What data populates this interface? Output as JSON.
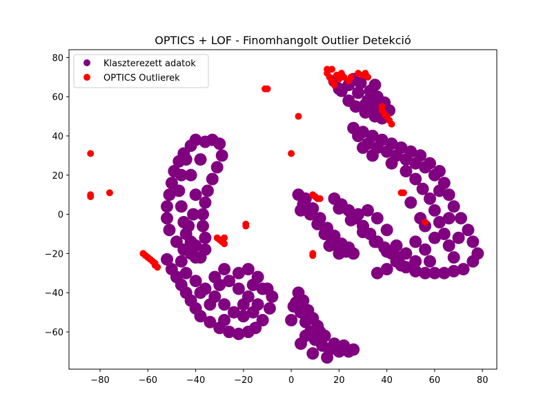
{
  "chart_data": {
    "type": "scatter",
    "title": "OPTICS + LOF - Finomhangolt Outlier Detekció",
    "xlabel": "",
    "ylabel": "",
    "xlim": [
      -93,
      86
    ],
    "ylim": [
      -79,
      84
    ],
    "xticks": [
      -80,
      -60,
      -40,
      -20,
      0,
      20,
      40,
      60,
      80
    ],
    "yticks": [
      -60,
      -40,
      -20,
      0,
      20,
      40,
      60,
      80
    ],
    "xtick_labels": [
      "−80",
      "−60",
      "−40",
      "−20",
      "0",
      "20",
      "40",
      "60",
      "80"
    ],
    "ytick_labels": [
      "−60",
      "−40",
      "−20",
      "0",
      "20",
      "40",
      "60",
      "80"
    ],
    "grid": false,
    "legend_position": "top-left",
    "series": [
      {
        "name": "Klaszterezett adatok",
        "color": "#800080",
        "points": [
          [
            -40,
            38
          ],
          [
            -36,
            37
          ],
          [
            -33,
            38
          ],
          [
            -30,
            36
          ],
          [
            -29,
            30
          ],
          [
            -31,
            24
          ],
          [
            -33,
            18
          ],
          [
            -35,
            12
          ],
          [
            -36,
            6
          ],
          [
            -37,
            0
          ],
          [
            -37,
            -6
          ],
          [
            -36,
            -12
          ],
          [
            -36,
            -18
          ],
          [
            -38,
            -22
          ],
          [
            -42,
            35
          ],
          [
            -45,
            31
          ],
          [
            -47,
            27
          ],
          [
            -49,
            22
          ],
          [
            -50,
            16
          ],
          [
            -51,
            10
          ],
          [
            -52,
            4
          ],
          [
            -52,
            -2
          ],
          [
            -51,
            -8
          ],
          [
            -48,
            -14
          ],
          [
            -45,
            -18
          ],
          [
            -42,
            -20
          ],
          [
            -40,
            -22
          ],
          [
            -44,
            28
          ],
          [
            -46,
            20
          ],
          [
            -47,
            12
          ],
          [
            -46,
            4
          ],
          [
            -45,
            -4
          ],
          [
            -44,
            -10
          ],
          [
            -42,
            -14
          ],
          [
            -40,
            -16
          ],
          [
            -40,
            10
          ],
          [
            -41,
            0
          ],
          [
            -42,
            20
          ],
          [
            -38,
            28
          ],
          [
            -43,
            -6
          ],
          [
            -52,
            -23
          ],
          [
            -50,
            -28
          ],
          [
            -48,
            -32
          ],
          [
            -46,
            -36
          ],
          [
            -44,
            -40
          ],
          [
            -42,
            -44
          ],
          [
            -40,
            -48
          ],
          [
            -38,
            -52
          ],
          [
            -34,
            -55
          ],
          [
            -30,
            -58
          ],
          [
            -26,
            -60
          ],
          [
            -22,
            -61
          ],
          [
            -18,
            -60
          ],
          [
            -15,
            -58
          ],
          [
            -12,
            -54
          ],
          [
            -9,
            -48
          ],
          [
            -8,
            -42
          ],
          [
            -10,
            -38
          ],
          [
            -44,
            -30
          ],
          [
            -40,
            -34
          ],
          [
            -36,
            -38
          ],
          [
            -32,
            -42
          ],
          [
            -28,
            -46
          ],
          [
            -24,
            -50
          ],
          [
            -20,
            -52
          ],
          [
            -16,
            -50
          ],
          [
            -14,
            -46
          ],
          [
            -18,
            -42
          ],
          [
            -22,
            -38
          ],
          [
            -26,
            -34
          ],
          [
            -22,
            -30
          ],
          [
            -18,
            -28
          ],
          [
            -14,
            -32
          ],
          [
            -12,
            -38
          ],
          [
            -16,
            -36
          ],
          [
            -20,
            -46
          ],
          [
            -28,
            -54
          ],
          [
            -34,
            -46
          ],
          [
            -38,
            -40
          ],
          [
            -30,
            -36
          ],
          [
            -28,
            -28
          ],
          [
            -32,
            -32
          ],
          [
            -46,
            -24
          ],
          [
            2,
            -45
          ],
          [
            4,
            -50
          ],
          [
            6,
            -55
          ],
          [
            8,
            -60
          ],
          [
            10,
            -64
          ],
          [
            13,
            -67
          ],
          [
            16,
            -69
          ],
          [
            20,
            -70
          ],
          [
            24,
            -70
          ],
          [
            26,
            -69
          ],
          [
            3,
            -40
          ],
          [
            5,
            -44
          ],
          [
            7,
            -49
          ],
          [
            9,
            -53
          ],
          [
            11,
            -57
          ],
          [
            14,
            -62
          ],
          [
            18,
            -66
          ],
          [
            22,
            -67
          ],
          [
            1,
            -47
          ],
          [
            0,
            -54
          ],
          [
            4,
            -66
          ],
          [
            9,
            -71
          ],
          [
            15,
            -73
          ],
          [
            12,
            -60
          ],
          [
            6,
            -62
          ],
          [
            3,
            10
          ],
          [
            5,
            5
          ],
          [
            8,
            0
          ],
          [
            11,
            -5
          ],
          [
            14,
            -10
          ],
          [
            17,
            -14
          ],
          [
            20,
            -17
          ],
          [
            23,
            -19
          ],
          [
            26,
            -20
          ],
          [
            6,
            8
          ],
          [
            9,
            3
          ],
          [
            12,
            -2
          ],
          [
            15,
            -7
          ],
          [
            18,
            -11
          ],
          [
            21,
            -15
          ],
          [
            24,
            -17
          ],
          [
            4,
            2
          ],
          [
            16,
            -16
          ],
          [
            20,
            -20
          ],
          [
            18,
            8
          ],
          [
            21,
            5
          ],
          [
            24,
            2
          ],
          [
            27,
            -2
          ],
          [
            30,
            -6
          ],
          [
            33,
            -10
          ],
          [
            36,
            -14
          ],
          [
            39,
            -17
          ],
          [
            42,
            -20
          ],
          [
            45,
            -22
          ],
          [
            20,
            3
          ],
          [
            25,
            -3
          ],
          [
            30,
            -9
          ],
          [
            35,
            -14
          ],
          [
            40,
            -19
          ],
          [
            44,
            -24
          ],
          [
            48,
            -27
          ],
          [
            52,
            -29
          ],
          [
            56,
            -30
          ],
          [
            60,
            -30
          ],
          [
            64,
            -30
          ],
          [
            68,
            -29
          ],
          [
            72,
            -28
          ],
          [
            76,
            -24
          ],
          [
            78,
            -20
          ],
          [
            76,
            -14
          ],
          [
            74,
            -8
          ],
          [
            71,
            -2
          ],
          [
            68,
            4
          ],
          [
            66,
            10
          ],
          [
            64,
            16
          ],
          [
            60,
            20
          ],
          [
            56,
            24
          ],
          [
            52,
            26
          ],
          [
            48,
            28
          ],
          [
            44,
            30
          ],
          [
            40,
            32
          ],
          [
            36,
            34
          ],
          [
            32,
            36
          ],
          [
            28,
            40
          ],
          [
            26,
            44
          ],
          [
            48,
            22
          ],
          [
            52,
            18
          ],
          [
            55,
            13
          ],
          [
            58,
            8
          ],
          [
            60,
            2
          ],
          [
            62,
            -4
          ],
          [
            64,
            -10
          ],
          [
            66,
            -16
          ],
          [
            68,
            -22
          ],
          [
            58,
            -24
          ],
          [
            52,
            -24
          ],
          [
            46,
            -26
          ],
          [
            40,
            -28
          ],
          [
            36,
            -30
          ],
          [
            60,
            -12
          ],
          [
            56,
            -18
          ],
          [
            62,
            22
          ],
          [
            58,
            26
          ],
          [
            54,
            30
          ],
          [
            50,
            32
          ],
          [
            46,
            34
          ],
          [
            42,
            36
          ],
          [
            38,
            38
          ],
          [
            34,
            40
          ],
          [
            30,
            42
          ],
          [
            62,
            12
          ],
          [
            66,
            -2
          ],
          [
            70,
            -12
          ],
          [
            56,
            -6
          ],
          [
            52,
            -14
          ],
          [
            48,
            -20
          ],
          [
            44,
            -16
          ],
          [
            40,
            -8
          ],
          [
            36,
            -2
          ],
          [
            32,
            2
          ],
          [
            28,
            0
          ],
          [
            30,
            34
          ],
          [
            34,
            30
          ],
          [
            42,
            26
          ],
          [
            50,
            6
          ],
          [
            54,
            -2
          ],
          [
            18,
            68
          ],
          [
            21,
            63
          ],
          [
            24,
            58
          ],
          [
            27,
            55
          ],
          [
            31,
            52
          ],
          [
            35,
            50
          ],
          [
            38,
            49
          ],
          [
            24,
            66
          ],
          [
            28,
            62
          ],
          [
            32,
            58
          ],
          [
            35,
            55
          ],
          [
            38,
            52
          ],
          [
            29,
            67
          ],
          [
            33,
            63
          ],
          [
            36,
            60
          ],
          [
            39,
            57
          ],
          [
            41,
            53
          ],
          [
            26,
            69
          ],
          [
            20,
            64
          ],
          [
            31,
            56
          ],
          [
            35,
            66
          ]
        ]
      },
      {
        "name": "OPTICS Outlierek",
        "color": "#ff0000",
        "points": [
          [
            -84,
            31
          ],
          [
            -84,
            10
          ],
          [
            -84,
            9
          ],
          [
            -76,
            11
          ],
          [
            -62,
            -20
          ],
          [
            -61,
            -21
          ],
          [
            -60,
            -22
          ],
          [
            -59,
            -23
          ],
          [
            -58,
            -24
          ],
          [
            -57,
            -25
          ],
          [
            -57,
            -26
          ],
          [
            -56,
            -27
          ],
          [
            -31,
            -12
          ],
          [
            -30,
            -13
          ],
          [
            -29,
            -14
          ],
          [
            -28,
            -12
          ],
          [
            -28,
            -15
          ],
          [
            -19,
            -5
          ],
          [
            -19,
            -6
          ],
          [
            -11,
            64
          ],
          [
            -10,
            64
          ],
          [
            0,
            31
          ],
          [
            3,
            50
          ],
          [
            9,
            -20
          ],
          [
            9,
            -21
          ],
          [
            9,
            10
          ],
          [
            10,
            9
          ],
          [
            11,
            8
          ],
          [
            12,
            8
          ],
          [
            15,
            74
          ],
          [
            15,
            72
          ],
          [
            16,
            70
          ],
          [
            17,
            68
          ],
          [
            18,
            66
          ],
          [
            17,
            74
          ],
          [
            19,
            71
          ],
          [
            20,
            69
          ],
          [
            21,
            72
          ],
          [
            22,
            70
          ],
          [
            24,
            68
          ],
          [
            25,
            70
          ],
          [
            28,
            72
          ],
          [
            30,
            71
          ],
          [
            31,
            72
          ],
          [
            32,
            70
          ],
          [
            38,
            55
          ],
          [
            38,
            53
          ],
          [
            39,
            51
          ],
          [
            40,
            50
          ],
          [
            41,
            48
          ],
          [
            42,
            46
          ],
          [
            46,
            11
          ],
          [
            47,
            11
          ],
          [
            56,
            -4
          ]
        ]
      }
    ]
  }
}
